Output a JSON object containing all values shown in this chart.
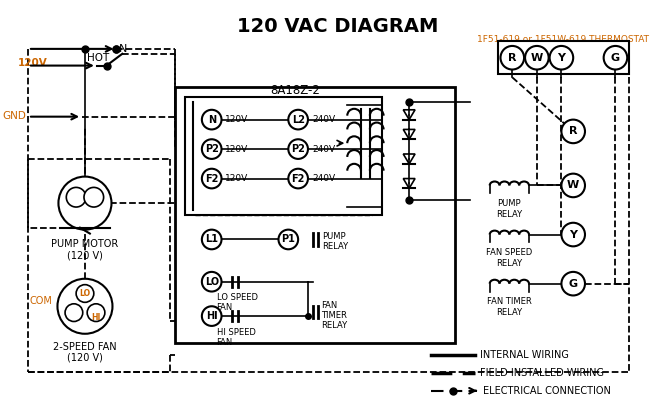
{
  "title": "120 VAC DIAGRAM",
  "title_fontsize": 14,
  "title_fontweight": "bold",
  "bg_color": "#ffffff",
  "line_color": "#000000",
  "orange_color": "#cc6600",
  "thermostat_label": "1F51-619 or 1F51W-619 THERMOSTAT",
  "control_box_label": "8A18Z-2",
  "terminal_labels_rwxg": [
    "R",
    "W",
    "Y",
    "G"
  ],
  "left_term_labels": [
    "N",
    "P2",
    "F2"
  ],
  "left_voltages": [
    "120V",
    "120V",
    "120V"
  ],
  "right_term_labels": [
    "L2",
    "P2",
    "F2"
  ],
  "right_voltages": [
    "240V",
    "240V",
    "240V"
  ],
  "pump_motor_label": "PUMP MOTOR",
  "pump_motor_v": "(120 V)",
  "fan_label": "2-SPEED FAN",
  "fan_v": "(120 V)",
  "voltage_label_120": "120V",
  "voltage_label_hot": "HOT",
  "gnd_label": "GND",
  "com_label": "COM"
}
